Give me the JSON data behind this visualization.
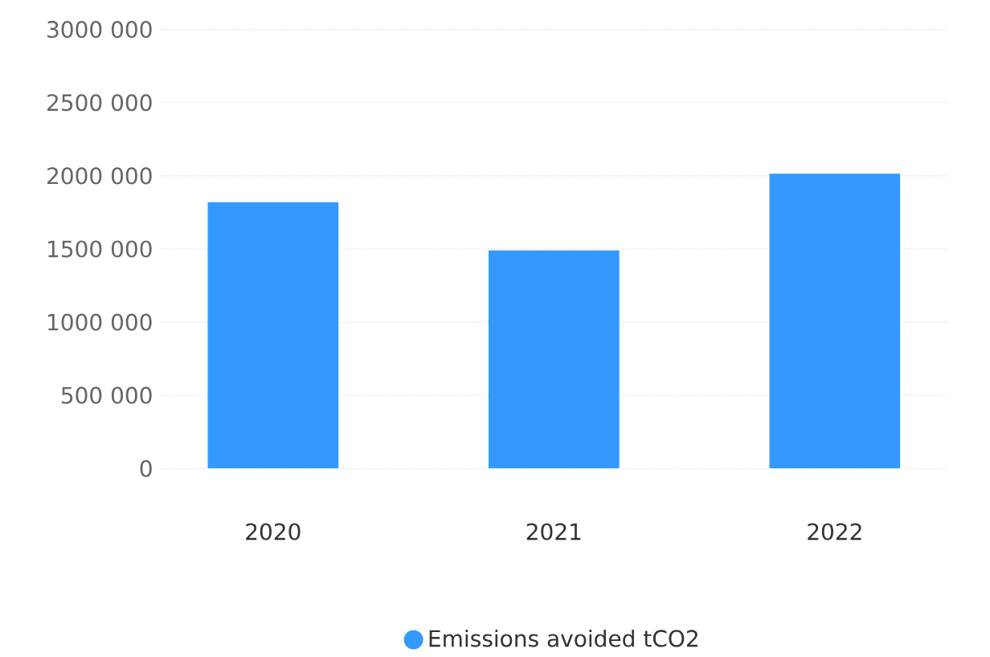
{
  "chart_data": {
    "type": "bar",
    "categories": [
      "2020",
      "2021",
      "2022"
    ],
    "series": [
      {
        "name": "Emissions avoided tCO2",
        "color": "#3399ff",
        "values": [
          1820000,
          1490000,
          2015000
        ]
      }
    ],
    "ylim": [
      0,
      3000000
    ],
    "yticks": [
      {
        "value": 0,
        "label": "0"
      },
      {
        "value": 500000,
        "label": "500 000"
      },
      {
        "value": 1000000,
        "label": "1000 000"
      },
      {
        "value": 1500000,
        "label": "1500 000"
      },
      {
        "value": 2000000,
        "label": "2000 000"
      },
      {
        "value": 2500000,
        "label": "2500 000"
      },
      {
        "value": 3000000,
        "label": "3000 000"
      }
    ],
    "grid": "y",
    "legend": "bottom"
  }
}
